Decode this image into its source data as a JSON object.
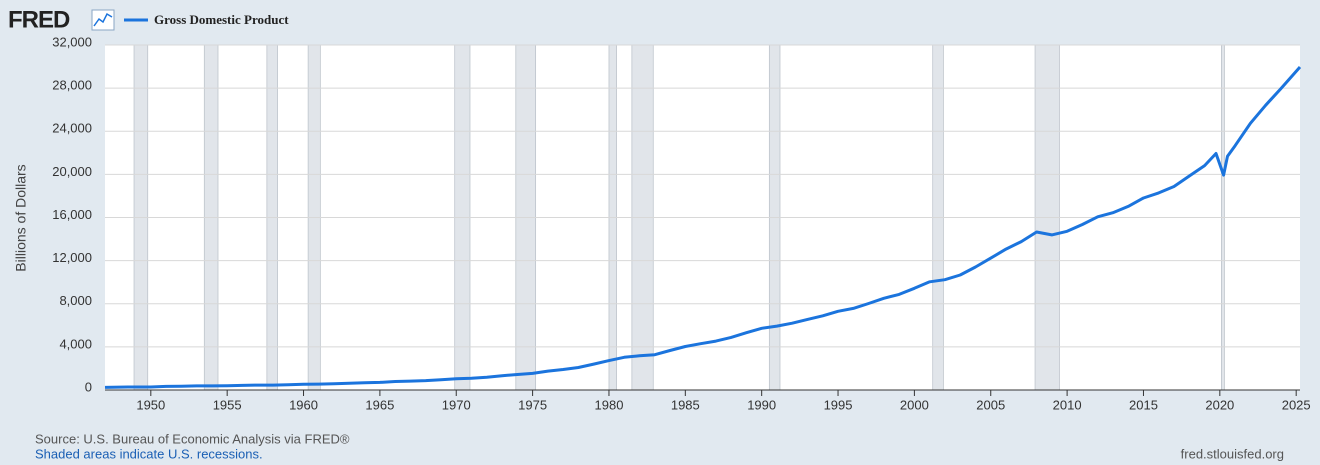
{
  "chart_data": {
    "type": "line",
    "logo": "FRED",
    "y_label": "Billions of Dollars",
    "source": "Source: U.S. Bureau of Economic Analysis via FRED®",
    "note": "Shaded areas indicate U.S. recessions.",
    "site": "fred.stlouisfed.org",
    "x": [
      1947,
      1948,
      1949,
      1950,
      1951,
      1952,
      1953,
      1954,
      1955,
      1956,
      1957,
      1958,
      1959,
      1960,
      1961,
      1962,
      1963,
      1964,
      1965,
      1966,
      1967,
      1968,
      1969,
      1970,
      1971,
      1972,
      1973,
      1974,
      1975,
      1976,
      1977,
      1978,
      1979,
      1980,
      1981,
      1982,
      1983,
      1984,
      1985,
      1986,
      1987,
      1988,
      1989,
      1990,
      1991,
      1992,
      1993,
      1994,
      1995,
      1996,
      1997,
      1998,
      1999,
      2000,
      2001,
      2002,
      2003,
      2004,
      2005,
      2006,
      2007,
      2008,
      2009,
      2010,
      2011,
      2012,
      2013,
      2014,
      2015,
      2016,
      2017,
      2018,
      2019,
      2019.75,
      2020.25,
      2020.5,
      2021,
      2022,
      2023,
      2024,
      2025.25
    ],
    "series": [
      {
        "name": "Gross Domestic Product",
        "color": "#1b74dd",
        "values": [
          243,
          266,
          275,
          280,
          336,
          357,
          380,
          382,
          396,
          427,
          452,
          452,
          491,
          542,
          545,
          585,
          618,
          664,
          709,
          787,
          825,
          869,
          955,
          1039,
          1088,
          1191,
          1329,
          1435,
          1544,
          1755,
          1905,
          2088,
          2401,
          2723,
          3031,
          3175,
          3273,
          3667,
          4035,
          4299,
          4540,
          4883,
          5313,
          5727,
          5928,
          6192,
          6545,
          6878,
          7300,
          7567,
          8022,
          8508,
          8867,
          9429,
          10032,
          10230,
          10666,
          11406,
          12232,
          13065,
          13769,
          14651,
          14383,
          14721,
          15351,
          16069,
          16443,
          17032,
          17810,
          18282,
          18880,
          19852,
          20814,
          21933,
          19935,
          21684,
          22657,
          24741,
          26408,
          27956,
          29962
        ]
      }
    ],
    "recessions": [
      [
        1948.9,
        1949.8
      ],
      [
        1953.5,
        1954.4
      ],
      [
        1957.6,
        1958.3
      ],
      [
        1960.3,
        1961.1
      ],
      [
        1969.9,
        1970.9
      ],
      [
        1973.9,
        1975.2
      ],
      [
        1980.0,
        1980.5
      ],
      [
        1981.5,
        1982.9
      ],
      [
        1990.5,
        1991.2
      ],
      [
        2001.2,
        2001.9
      ],
      [
        2007.9,
        2009.5
      ],
      [
        2020.1,
        2020.3
      ]
    ],
    "xlim": [
      1947,
      2025.25
    ],
    "xticks": [
      1950,
      1955,
      1960,
      1965,
      1970,
      1975,
      1980,
      1985,
      1990,
      1995,
      2000,
      2005,
      2010,
      2015,
      2020,
      2025
    ],
    "ylim": [
      0,
      32000
    ],
    "yticks": [
      0,
      {
        "value": 4000,
        "label": "4,000"
      },
      {
        "value": 8000,
        "label": "8,000"
      },
      {
        "value": 12000,
        "label": "12,000"
      },
      {
        "value": 16000,
        "label": "16,000"
      },
      {
        "value": 20000,
        "label": "20,000"
      },
      {
        "value": 24000,
        "label": "24,000"
      },
      {
        "value": 28000,
        "label": "28,000"
      },
      {
        "value": 32000,
        "label": "32,000"
      }
    ],
    "grid": true
  }
}
